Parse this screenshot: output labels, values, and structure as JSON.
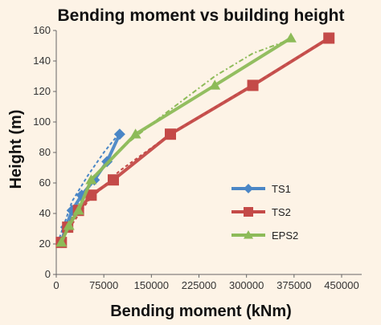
{
  "chart_data": {
    "type": "line",
    "title": "Bending moment vs building height",
    "xlabel": "Bending moment (kNm)",
    "ylabel": "Height (m)",
    "xlim": [
      0,
      450000
    ],
    "ylim": [
      0,
      160
    ],
    "xticks": [
      "0",
      "75000",
      "150000",
      "225000",
      "300000",
      "375000",
      "450000"
    ],
    "yticks": [
      "0",
      "20",
      "40",
      "60",
      "80",
      "100",
      "120",
      "140",
      "160"
    ],
    "grid": false,
    "legend_position": "right",
    "series": [
      {
        "name": "TS1",
        "color": "#4a86c6",
        "marker": "diamond",
        "x": [
          8000,
          15000,
          25000,
          40000,
          60000,
          80000,
          100000
        ],
        "y": [
          21,
          31,
          42,
          52,
          62,
          74,
          92
        ],
        "trend_x": [
          5000,
          25000,
          50000,
          75000,
          100000
        ],
        "trend_y": [
          24,
          48,
          65,
          80,
          93
        ]
      },
      {
        "name": "TS2",
        "color": "#c44a48",
        "marker": "square",
        "x": [
          8000,
          18000,
          35000,
          55000,
          90000,
          180000,
          310000,
          430000
        ],
        "y": [
          21,
          31,
          42,
          52,
          62,
          92,
          124,
          155
        ],
        "trend_x": [
          5000,
          50000,
          100000,
          180000,
          260000,
          340000,
          430000
        ],
        "trend_y": [
          21,
          48,
          68,
          92,
          112,
          132,
          155
        ]
      },
      {
        "name": "EPS2",
        "color": "#8dbb58",
        "marker": "triangle",
        "x": [
          8000,
          20000,
          35000,
          55000,
          125000,
          250000,
          370000
        ],
        "y": [
          21,
          32,
          42,
          62,
          92,
          124,
          155
        ],
        "trend_x": [
          5000,
          50000,
          100000,
          170000,
          250000,
          310000,
          375000
        ],
        "trend_y": [
          22,
          58,
          82,
          105,
          130,
          145,
          155
        ]
      }
    ]
  }
}
